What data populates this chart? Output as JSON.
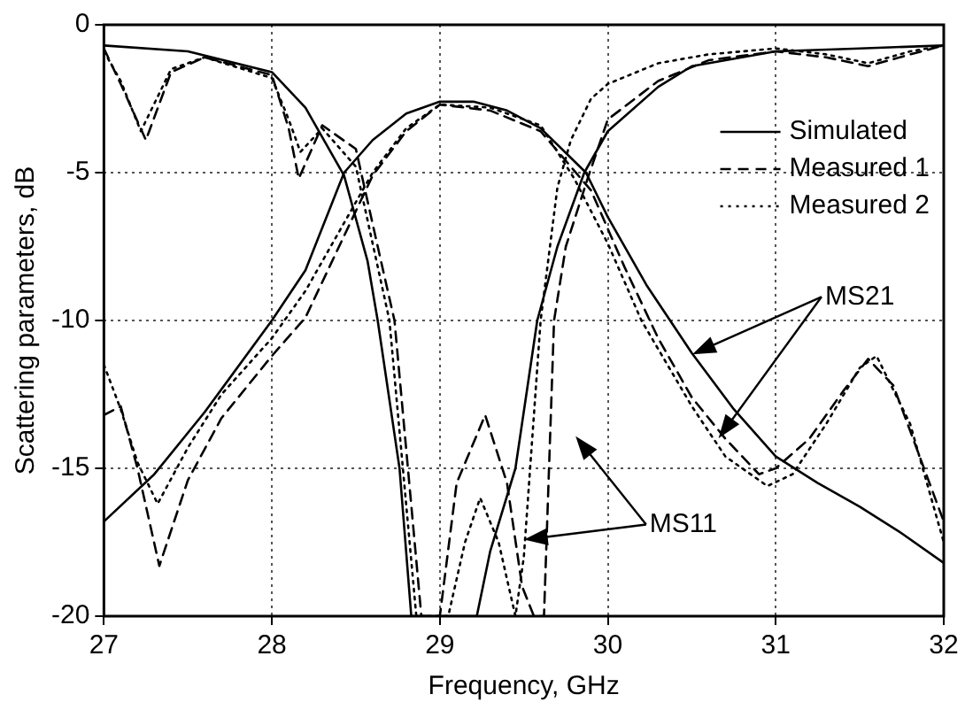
{
  "chart_data": {
    "type": "line",
    "xlabel": "Frequency, GHz",
    "ylabel": "Scattering parameters, dB",
    "xlim": [
      27,
      32
    ],
    "xticks": [
      27,
      28,
      29,
      30,
      31,
      32
    ],
    "ylim": [
      -20,
      0
    ],
    "yticks": [
      -20,
      -15,
      -10,
      -5,
      0
    ],
    "grid": true,
    "legend": "top right",
    "annotations": [
      "MS21",
      "MS11"
    ],
    "series": [
      {
        "name": "Simulated",
        "color": "#000000",
        "line_style": "solid",
        "x": [
          27,
          27.3,
          27.6,
          28,
          28.2,
          28.43,
          28.6,
          28.8,
          29,
          29.2,
          29.4,
          29.6,
          29.87,
          30,
          30.23,
          30.5,
          30.75,
          31,
          31.25,
          31.5,
          31.75,
          32
        ],
        "values": [
          -16.8,
          -15.2,
          -13.1,
          -10,
          -8.3,
          -5,
          -3.9,
          -3,
          -2.6,
          -2.6,
          -2.9,
          -3.5,
          -5,
          -6.5,
          -8.8,
          -11.1,
          -13,
          -14.6,
          -15.5,
          -16.3,
          -17.2,
          -18.2
        ]
      },
      {
        "name": "Measured 1",
        "color": "#000000",
        "line_style": "dashed",
        "x": [
          27,
          27.1,
          27.2,
          27.33,
          27.5,
          27.7,
          28,
          28.2,
          28.4,
          28.6,
          28.8,
          29,
          29.3,
          29.6,
          29.9,
          30.1,
          30.3,
          30.5,
          30.7,
          30.9,
          31,
          31.2,
          31.4,
          31.55,
          31.7,
          31.85,
          32
        ],
        "values": [
          -13.2,
          -12.9,
          -15,
          -18.3,
          -15.4,
          -13.3,
          -11.2,
          -9.9,
          -7.5,
          -5.1,
          -3.6,
          -2.7,
          -2.9,
          -3.6,
          -5.6,
          -8.2,
          -10.6,
          -12.6,
          -14,
          -15.2,
          -15,
          -14,
          -12.4,
          -11.3,
          -12.2,
          -14.5,
          -16.8
        ]
      },
      {
        "name": "Measured 2",
        "color": "#000000",
        "line_style": "dotted",
        "x": [
          27,
          27.1,
          27.2,
          27.32,
          27.5,
          27.7,
          28,
          28.2,
          28.4,
          28.6,
          28.8,
          29,
          29.3,
          29.6,
          29.8,
          30,
          30.2,
          30.5,
          30.7,
          30.95,
          31.1,
          31.3,
          31.5,
          31.6,
          31.8,
          32
        ],
        "values": [
          -11.5,
          -13,
          -14.8,
          -16.2,
          -14.3,
          -12.5,
          -10.6,
          -9,
          -7,
          -5,
          -3.5,
          -2.7,
          -2.8,
          -3.4,
          -5.2,
          -7.4,
          -10,
          -12.9,
          -14.6,
          -15.6,
          -15.2,
          -13.5,
          -11.6,
          -11.2,
          -13.5,
          -17.5
        ]
      },
      {
        "color": "#000000",
        "line_style": "solid",
        "x": [
          27,
          27.5,
          28,
          28.2,
          28.43,
          28.57,
          28.63,
          28.76,
          28.83,
          29.22,
          29.3,
          29.45,
          29.58,
          29.7,
          29.86,
          30,
          30.3,
          30.5,
          31,
          31.5,
          32
        ],
        "values": [
          -0.7,
          -0.9,
          -1.6,
          -2.8,
          -5.1,
          -8,
          -10,
          -15,
          -20,
          -20,
          -17.8,
          -15,
          -10,
          -7.5,
          -5,
          -3.6,
          -2.1,
          -1.4,
          -0.9,
          -0.8,
          -0.7
        ]
      },
      {
        "color": "#000000",
        "line_style": "dashed",
        "x": [
          27,
          27.1,
          27.25,
          27.4,
          27.6,
          28,
          28.1,
          28.16,
          28.3,
          28.5,
          28.65,
          28.73,
          28.89,
          29.0,
          29.1,
          29.27,
          29.4,
          29.49,
          29.56,
          29.62,
          29.68,
          29.75,
          29.88,
          30,
          30.3,
          30.6,
          31,
          31.3,
          31.55,
          31.8,
          32
        ],
        "values": [
          -0.8,
          -2,
          -3.9,
          -1.6,
          -1.1,
          -1.7,
          -3.5,
          -5.2,
          -3.4,
          -4.2,
          -8,
          -10,
          -20,
          -20,
          -15.5,
          -13.2,
          -15.5,
          -19,
          -20,
          -20,
          -10,
          -7.5,
          -5.2,
          -3.2,
          -1.9,
          -1.2,
          -0.9,
          -1.1,
          -1.4,
          -1,
          -0.7
        ]
      },
      {
        "color": "#000000",
        "line_style": "dotted",
        "x": [
          27,
          27.1,
          27.22,
          27.4,
          27.6,
          28,
          28.1,
          28.17,
          28.3,
          28.5,
          28.7,
          28.86,
          29.05,
          29.15,
          29.24,
          29.35,
          29.45,
          29.5,
          29.6,
          29.7,
          29.78,
          29.9,
          30,
          30.3,
          30.6,
          31,
          31.3,
          31.55,
          31.8,
          32
        ],
        "values": [
          -0.9,
          -1.9,
          -3.6,
          -1.5,
          -1.1,
          -1.8,
          -3.2,
          -4.3,
          -3.5,
          -4.8,
          -10,
          -20,
          -20,
          -17.5,
          -16,
          -17.5,
          -20,
          -18,
          -10,
          -5.5,
          -3.9,
          -2.5,
          -2,
          -1.3,
          -1,
          -0.8,
          -1,
          -1.3,
          -0.9,
          -0.7
        ]
      }
    ]
  }
}
